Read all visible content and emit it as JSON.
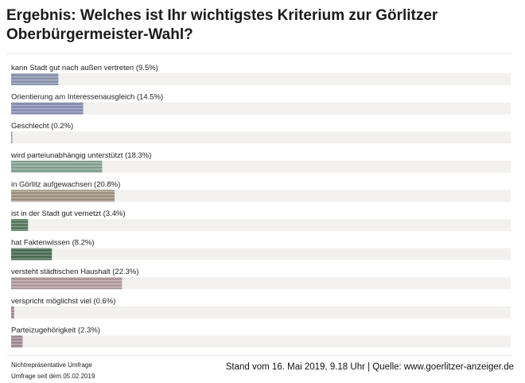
{
  "chart_data": {
    "type": "bar",
    "orientation": "horizontal",
    "title": "Ergebnis: Welches ist Ihr wichtigstes Kriterium zur Görlitzer Oberbürgermeister-Wahl?",
    "categories": [
      "kann Stadt gut nach außen vertreten (9.5%)",
      "Orientierung am Interessenausgleich (14.5%)",
      "Geschlecht (0.2%)",
      "wird parteiunabhängig unterstützt (18.3%)",
      "in Görlitz aufgewachsen (20.8%)",
      "ist in der Stadt gut vernetzt (3.4%)",
      "hat Faktenwissen (8.2%)",
      "versteht städtischen Haushalt (22.3%)",
      "verspricht möglichst viel (0.6%)",
      "Parteizugehörigkeit (2.3%)"
    ],
    "values": [
      9.5,
      14.5,
      0.2,
      18.3,
      20.8,
      3.4,
      8.2,
      22.3,
      0.6,
      2.3
    ],
    "unit": "%",
    "xlim": [
      0,
      100
    ],
    "colors": [
      "#8e9ab4",
      "#8e96b8",
      "#9aa0b8",
      "#8aa898",
      "#a59888",
      "#5e7e62",
      "#4f7258",
      "#b8a0a4",
      "#a88a9a",
      "#a8909c"
    ],
    "track_color": "#f2f1ef",
    "grid": false,
    "legend": "none"
  },
  "footer": {
    "note_line1": "Nichtrepräsentative Umfrage",
    "note_line2": "Umfrage seit dem 05.02.2019",
    "source": "Stand vom 16. Mai 2019, 9.18 Uhr | Quelle: www.goerlitzer-anzeiger.de"
  }
}
